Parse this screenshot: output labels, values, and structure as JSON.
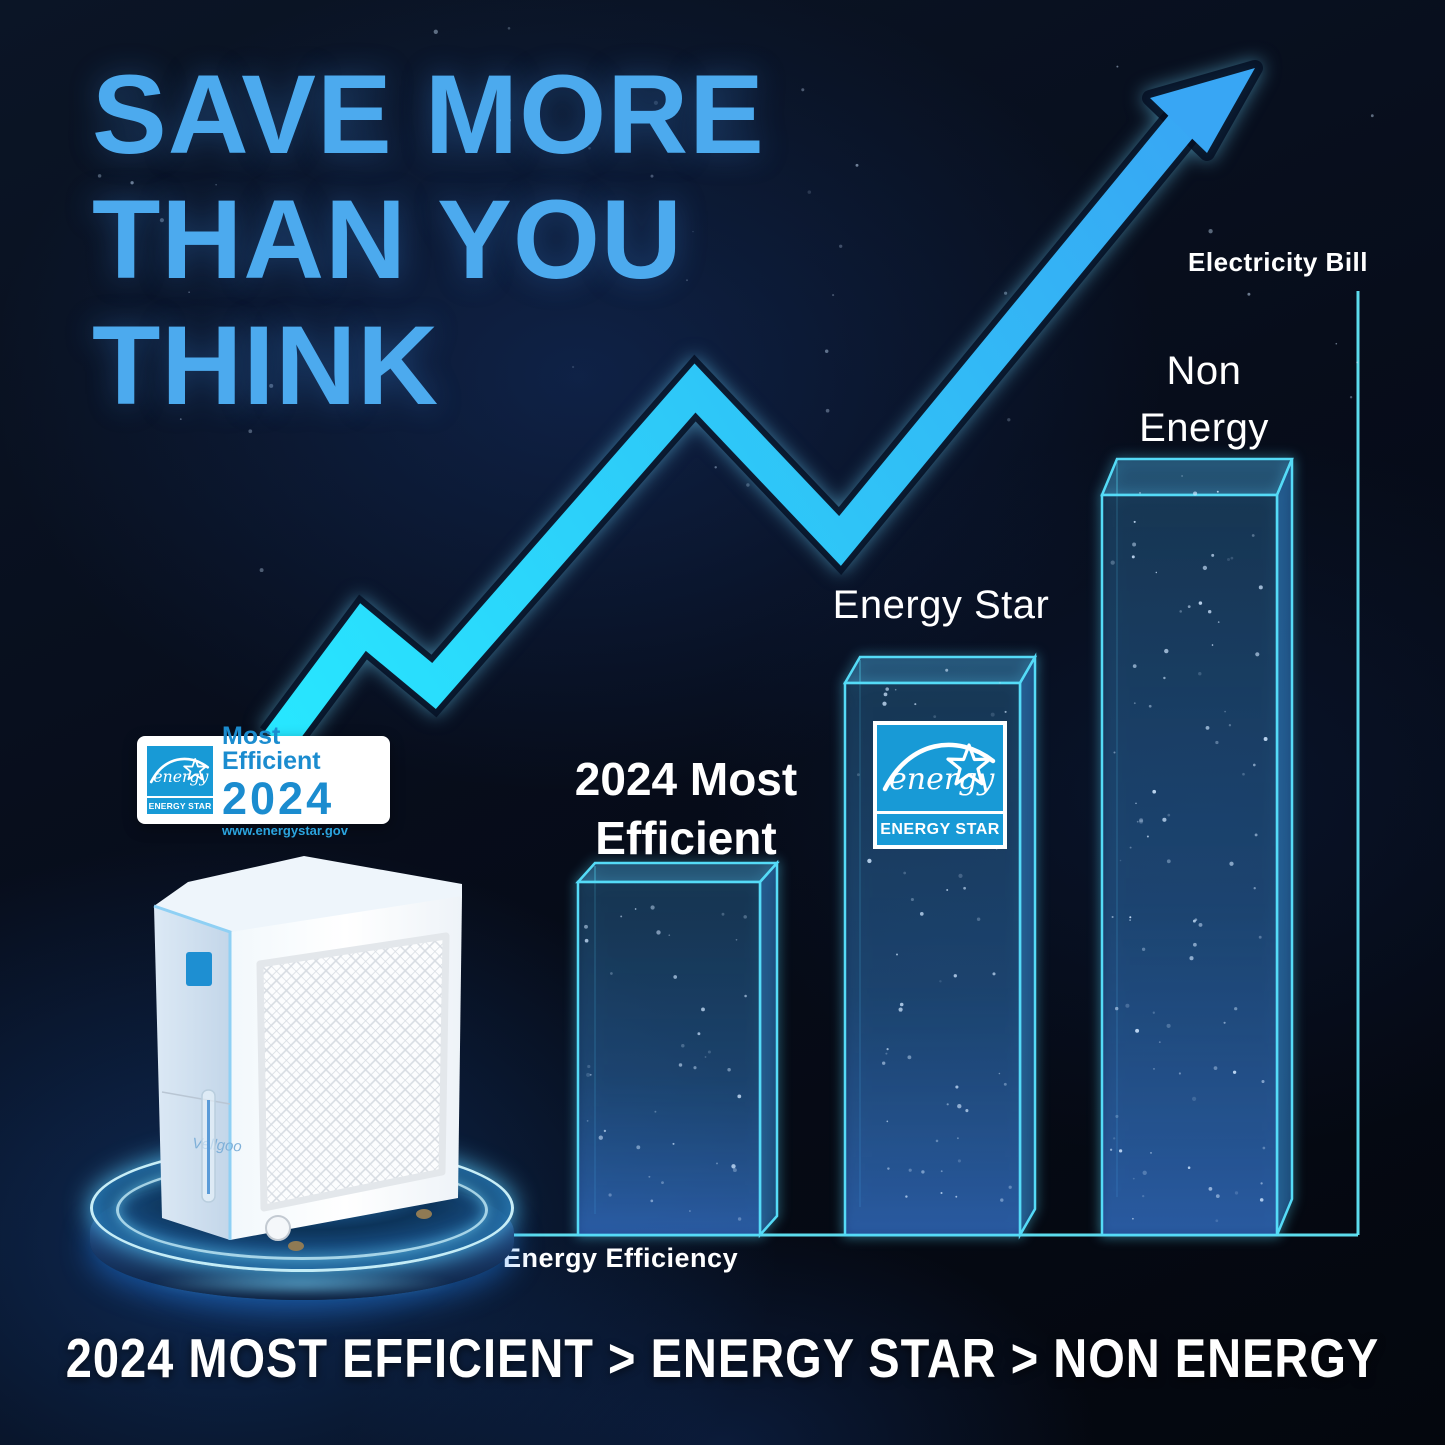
{
  "headline": {
    "lines": [
      "SAVE MORE",
      "THAN YOU",
      "THINK"
    ],
    "color": "#4caaee"
  },
  "chart_data": {
    "type": "bar",
    "categories": [
      "2024 Most Efficient",
      "Energy Star",
      "Non Energy"
    ],
    "values": [
      37,
      58,
      78
    ],
    "value_units": "relative electricity bill, percent of y-axis height (illustrative, no numeric ticks shown)",
    "label_lines": [
      [
        "2024 Most",
        "Efficient"
      ],
      [
        "Energy Star"
      ],
      [
        "Non",
        "Energy"
      ]
    ],
    "xlabel": "Energy Efficiency",
    "ylabel": "Electricity Bill",
    "ylim": [
      0,
      100
    ],
    "grid": false,
    "legend": false,
    "bar_style": "neon 3D glass columns with star speckles",
    "annotations": [
      "rising zigzag arrow from lower-left to upper-right"
    ]
  },
  "energy_star_logo": {
    "script": "energy",
    "wordmark": "ENERGY STAR",
    "color": "#189ad6"
  },
  "badge": {
    "title": "Most Efficient",
    "year": "2024",
    "url": "www.energystar.gov",
    "text_color": "#1b8ccf"
  },
  "product": {
    "brand": "Vellgoo"
  },
  "tagline": {
    "text": "2024 MOST EFFICIENT > ENERGY STAR > NON ENERGY"
  },
  "colors": {
    "background": "#070d1b",
    "headline_blue": "#4caaee",
    "arrow_cyan": "#27e7ff",
    "arrow_blue": "#39a2f3",
    "neon_stroke": "#55dbf7",
    "axis_cyan": "#61e7f8",
    "energy_star_blue": "#189ad6",
    "label_white": "#ffffff"
  }
}
